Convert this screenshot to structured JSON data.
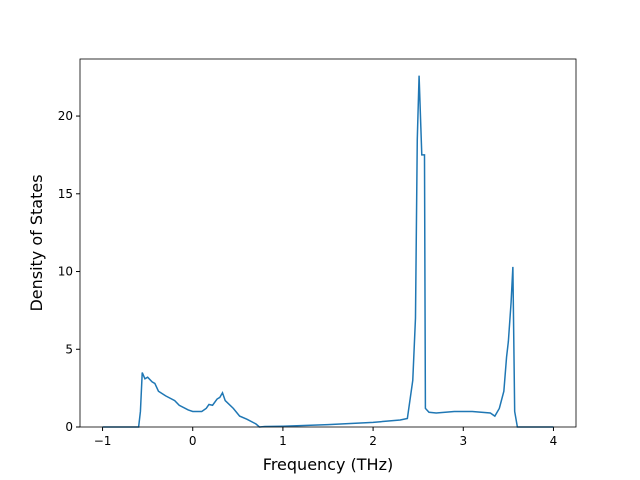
{
  "chart_data": {
    "type": "line",
    "xlabel": "Frequency (THz)",
    "ylabel": "Density of States",
    "xlim": [
      -1.25,
      4.25
    ],
    "ylim": [
      0,
      23.67
    ],
    "xticks": [
      {
        "value": -1,
        "label": "−1"
      },
      0,
      1,
      2,
      3,
      4
    ],
    "yticks": [
      0,
      5,
      10,
      15,
      20
    ],
    "series": [
      {
        "color": "#1f77b4",
        "x": [
          -1,
          -0.6,
          -0.58,
          -0.56,
          -0.53,
          -0.5,
          -0.45,
          -0.42,
          -0.38,
          -0.3,
          -0.2,
          -0.15,
          -0.05,
          0,
          0.1,
          0.15,
          0.18,
          0.22,
          0.27,
          0.3,
          0.33,
          0.36,
          0.45,
          0.52,
          0.6,
          0.7,
          0.74,
          0.8,
          1.0,
          1.5,
          2.0,
          2.3,
          2.38,
          2.44,
          2.47,
          2.49,
          2.51,
          2.54,
          2.57,
          2.58,
          2.62,
          2.7,
          2.9,
          3.1,
          3.3,
          3.35,
          3.4,
          3.45,
          3.48,
          3.5,
          3.53,
          3.55,
          3.57,
          3.6,
          4.0
        ],
        "values": [
          0,
          0,
          1,
          3.5,
          3.1,
          3.2,
          2.9,
          2.8,
          2.3,
          2.0,
          1.7,
          1.4,
          1.1,
          1.0,
          1.0,
          1.2,
          1.45,
          1.4,
          1.8,
          1.9,
          2.2,
          1.7,
          1.2,
          0.7,
          0.5,
          0.2,
          0,
          0.03,
          0.05,
          0.15,
          0.3,
          0.45,
          0.55,
          3,
          7,
          18.5,
          22.6,
          17.5,
          17.5,
          1.2,
          0.95,
          0.9,
          1.0,
          1.0,
          0.9,
          0.7,
          1.2,
          2.3,
          4.5,
          5.5,
          8,
          10.3,
          1,
          0,
          0
        ]
      }
    ]
  }
}
